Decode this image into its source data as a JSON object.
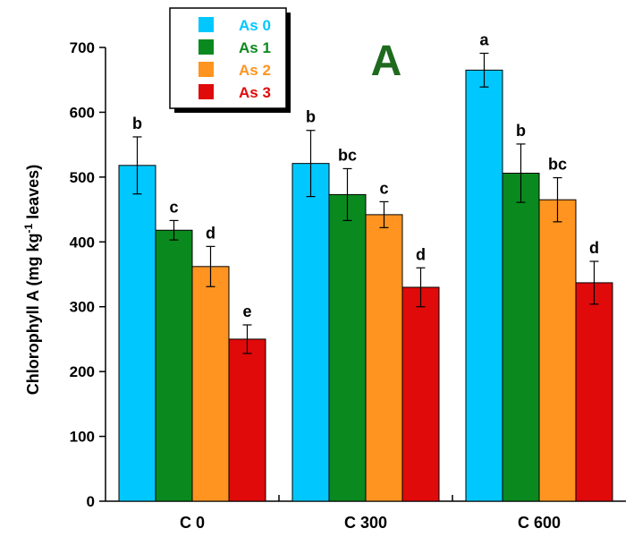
{
  "chart_data": {
    "type": "bar",
    "panel_label": "A",
    "ylabel_main": "Chlorophyll A (mg kg",
    "ylabel_sup": "-1",
    "ylabel_tail": " leaves)",
    "ylim": [
      0,
      700
    ],
    "yticks": [
      "0",
      "100",
      "200",
      "300",
      "400",
      "500",
      "600",
      "700"
    ],
    "categories": [
      "C 0",
      "C 300",
      "C 600"
    ],
    "legend_position": "top-left",
    "series": [
      {
        "name": "As 0",
        "color": "#00c8ff",
        "values": [
          518,
          521,
          665
        ],
        "errors": [
          44,
          51,
          26
        ],
        "letters": [
          "b",
          "b",
          "a"
        ]
      },
      {
        "name": "As 1",
        "color": "#0a8a1e",
        "values": [
          418,
          473,
          506
        ],
        "errors": [
          15,
          40,
          45
        ],
        "letters": [
          "c",
          "bc",
          "b"
        ]
      },
      {
        "name": "As 2",
        "color": "#ff9420",
        "values": [
          362,
          442,
          465
        ],
        "errors": [
          31,
          20,
          34
        ],
        "letters": [
          "d",
          "c",
          "bc"
        ]
      },
      {
        "name": "As 3",
        "color": "#e00a0a",
        "values": [
          250,
          330,
          337
        ],
        "errors": [
          22,
          30,
          33
        ],
        "letters": [
          "e",
          "d",
          "d"
        ]
      }
    ],
    "panel_letter_color": "#1e6a1e"
  }
}
